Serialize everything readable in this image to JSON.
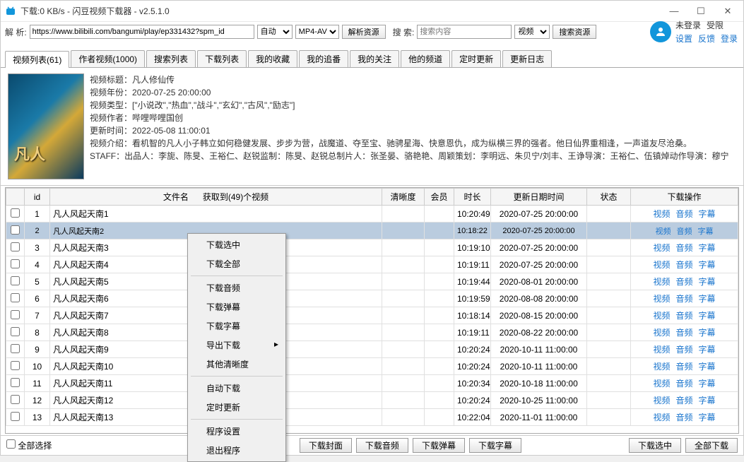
{
  "window": {
    "title": "下载:0 KB/s - 闪豆视频下载器 - v2.5.1.0"
  },
  "toolbar": {
    "parse_label": "解 析:",
    "url": "https://www.bilibili.com/bangumi/play/ep331432?spm_id",
    "auto": "自动",
    "format": "MP4-AVC",
    "parse_btn": "解析资源",
    "search_label": "搜 索:",
    "search_placeholder": "搜索内容",
    "search_type": "视频",
    "search_btn": "搜索资源"
  },
  "user": {
    "status1": "未登录",
    "status2": "受限",
    "link1": "设置",
    "link2": "反馈",
    "link3": "登录"
  },
  "tabs": [
    "视频列表(61)",
    "作者视频(1000)",
    "搜索列表",
    "下载列表",
    "我的收藏",
    "我的追番",
    "我的关注",
    "他的频道",
    "定时更新",
    "更新日志"
  ],
  "info": {
    "title_k": "视频标题：",
    "title_v": "凡人修仙传",
    "year_k": "视频年份：",
    "year_v": "2020-07-25 20:00:00",
    "type_k": "视频类型：",
    "type_v": "[\"小说改\",\"热血\",\"战斗\",\"玄幻\",\"古风\",\"励志\"]",
    "author_k": "视频作者：",
    "author_v": "哔哩哔哩国创",
    "update_k": "更新时间：",
    "update_v": "2022-05-08 11:00:01",
    "intro_k": "视频介绍：",
    "intro_v": "看机智的凡人小子韩立如何稳健发展、步步为营，战魔道、夺至宝、驰骋星海、快意恩仇，成为纵横三界的强者。他日仙界重相逢，一声道友尽沧桑。",
    "staff_k": "STAFF：",
    "staff_v": "出品人：李旎、陈旻、王裕仁、赵锐监制：陈旻、赵锐总制片人：张圣晏、骆艳艳、周颖策划：李明远、朱贝宁/刘丰、王诤导演：王裕仁、伍镇焯动作导演：穆宁"
  },
  "table": {
    "headers": {
      "id": "id",
      "name": "文件名",
      "name_extra": "获取到(49)个视频",
      "quality": "清晰度",
      "vip": "会员",
      "dur": "时长",
      "date": "更新日期时间",
      "status": "状态",
      "ops": "下载操作"
    },
    "ops": {
      "video": "视频",
      "audio": "音频",
      "sub": "字幕"
    },
    "rows": [
      {
        "id": "1",
        "name": "凡人风起天南1",
        "dur": "10:20:49",
        "date": "2020-07-25 20:00:00",
        "sel": false
      },
      {
        "id": "2",
        "name": "凡人风起天南2",
        "dur": "10:18:22",
        "date": "2020-07-25 20:00:00",
        "sel": true
      },
      {
        "id": "3",
        "name": "凡人风起天南3",
        "dur": "10:19:10",
        "date": "2020-07-25 20:00:00",
        "sel": false
      },
      {
        "id": "4",
        "name": "凡人风起天南4",
        "dur": "10:19:11",
        "date": "2020-07-25 20:00:00",
        "sel": false
      },
      {
        "id": "5",
        "name": "凡人风起天南5",
        "dur": "10:19:44",
        "date": "2020-08-01 20:00:00",
        "sel": false
      },
      {
        "id": "6",
        "name": "凡人风起天南6",
        "dur": "10:19:59",
        "date": "2020-08-08 20:00:00",
        "sel": false
      },
      {
        "id": "7",
        "name": "凡人风起天南7",
        "dur": "10:18:14",
        "date": "2020-08-15 20:00:00",
        "sel": false
      },
      {
        "id": "8",
        "name": "凡人风起天南8",
        "dur": "10:19:11",
        "date": "2020-08-22 20:00:00",
        "sel": false
      },
      {
        "id": "9",
        "name": "凡人风起天南9",
        "dur": "10:20:24",
        "date": "2020-10-11 11:00:00",
        "sel": false
      },
      {
        "id": "10",
        "name": "凡人风起天南10",
        "dur": "10:20:24",
        "date": "2020-10-11 11:00:00",
        "sel": false
      },
      {
        "id": "11",
        "name": "凡人风起天南11",
        "dur": "10:20:34",
        "date": "2020-10-18 11:00:00",
        "sel": false
      },
      {
        "id": "12",
        "name": "凡人风起天南12",
        "dur": "10:20:24",
        "date": "2020-10-25 11:00:00",
        "sel": false
      },
      {
        "id": "13",
        "name": "凡人风起天南13",
        "dur": "10:22:04",
        "date": "2020-11-01 11:00:00",
        "sel": false
      }
    ]
  },
  "context_menu": [
    {
      "t": "下载选中"
    },
    {
      "t": "下载全部"
    },
    {
      "sep": true
    },
    {
      "t": "下载音频"
    },
    {
      "t": "下载弹幕"
    },
    {
      "t": "下载字幕"
    },
    {
      "t": "导出下载",
      "arrow": true
    },
    {
      "t": "其他清晰度"
    },
    {
      "sep": true
    },
    {
      "t": "自动下载"
    },
    {
      "t": "定时更新"
    },
    {
      "sep": true
    },
    {
      "t": "程序设置"
    },
    {
      "t": "退出程序"
    }
  ],
  "footer": {
    "select_all": "全部选择",
    "dl_cover": "下载封面",
    "dl_audio": "下载音频",
    "dl_danmu": "下载弹幕",
    "dl_sub": "下载字幕",
    "dl_sel": "下载选中",
    "dl_all": "全部下载"
  }
}
